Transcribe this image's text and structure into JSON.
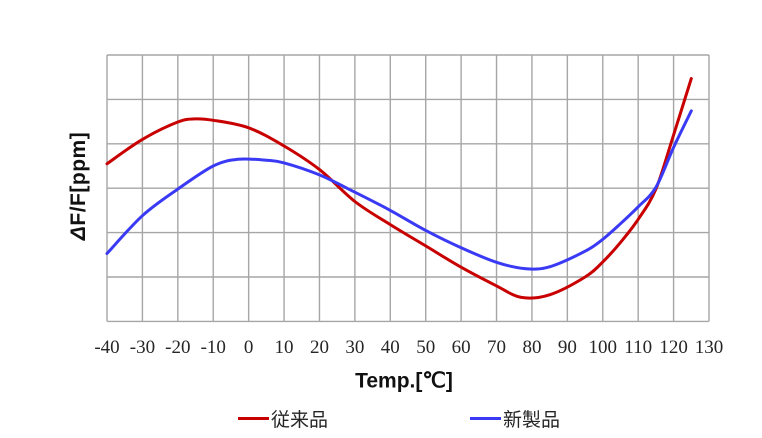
{
  "page": {
    "background": "#ffffff"
  },
  "chart_data": {
    "type": "line",
    "title": "",
    "xlabel": "Temp.[℃]",
    "ylabel": "ΔF/F[ppm]",
    "x_ticks": [
      -40,
      -30,
      -20,
      -10,
      0,
      10,
      20,
      30,
      40,
      50,
      60,
      70,
      80,
      90,
      100,
      110,
      120,
      130
    ],
    "xlim": [
      -40,
      130
    ],
    "ylim": [
      -3,
      3
    ],
    "y_unit": "grid divisions (y axis has gridlines but no numeric labels)",
    "grid": true,
    "grid_color": "#a6a6a6",
    "border_color": "#9c9c9c",
    "legend_position": "bottom",
    "series": [
      {
        "name": "従来品",
        "color": "#c80000",
        "points": [
          [
            -40,
            0.55
          ],
          [
            -30,
            1.1
          ],
          [
            -20,
            1.49
          ],
          [
            -15,
            1.56
          ],
          [
            -10,
            1.53
          ],
          [
            0,
            1.36
          ],
          [
            10,
            0.95
          ],
          [
            20,
            0.42
          ],
          [
            30,
            -0.3
          ],
          [
            40,
            -0.82
          ],
          [
            50,
            -1.3
          ],
          [
            60,
            -1.78
          ],
          [
            70,
            -2.2
          ],
          [
            77,
            -2.46
          ],
          [
            85,
            -2.4
          ],
          [
            95,
            -2.0
          ],
          [
            100,
            -1.66
          ],
          [
            105,
            -1.22
          ],
          [
            110,
            -0.7
          ],
          [
            115,
            -0.02
          ],
          [
            120,
            1.2
          ],
          [
            125,
            2.47
          ]
        ]
      },
      {
        "name": "新製品",
        "color": "#3a3af5",
        "points": [
          [
            -40,
            -1.47
          ],
          [
            -30,
            -0.62
          ],
          [
            -20,
            -0.02
          ],
          [
            -10,
            0.5
          ],
          [
            -3,
            0.65
          ],
          [
            5,
            0.63
          ],
          [
            10,
            0.57
          ],
          [
            20,
            0.3
          ],
          [
            30,
            -0.09
          ],
          [
            40,
            -0.5
          ],
          [
            50,
            -0.95
          ],
          [
            60,
            -1.34
          ],
          [
            70,
            -1.67
          ],
          [
            78,
            -1.81
          ],
          [
            85,
            -1.77
          ],
          [
            95,
            -1.42
          ],
          [
            100,
            -1.15
          ],
          [
            105,
            -0.8
          ],
          [
            110,
            -0.42
          ],
          [
            115,
            0.02
          ],
          [
            120,
            0.92
          ],
          [
            125,
            1.74
          ]
        ]
      }
    ]
  }
}
